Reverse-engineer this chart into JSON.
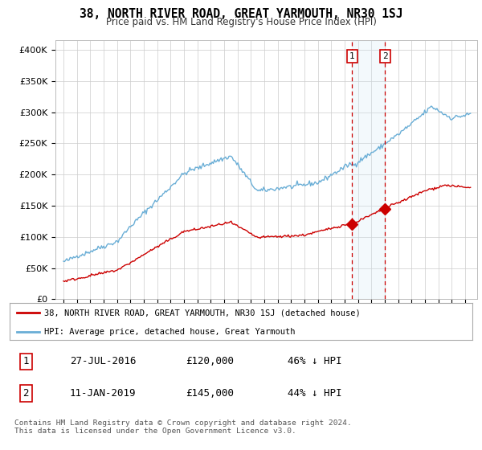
{
  "title": "38, NORTH RIVER ROAD, GREAT YARMOUTH, NR30 1SJ",
  "subtitle": "Price paid vs. HM Land Registry's House Price Index (HPI)",
  "ylabel_ticks": [
    "£0",
    "£50K",
    "£100K",
    "£150K",
    "£200K",
    "£250K",
    "£300K",
    "£350K",
    "£400K"
  ],
  "ytick_values": [
    0,
    50000,
    100000,
    150000,
    200000,
    250000,
    300000,
    350000,
    400000
  ],
  "ylim": [
    0,
    415000
  ],
  "hpi_color": "#6aaed6",
  "price_color": "#cc0000",
  "vline_color": "#cc0000",
  "marker1_date": 2016.57,
  "marker2_date": 2019.03,
  "marker1_price": 120000,
  "marker2_price": 145000,
  "annotation1": "1",
  "annotation2": "2",
  "legend_label1": "38, NORTH RIVER ROAD, GREAT YARMOUTH, NR30 1SJ (detached house)",
  "legend_label2": "HPI: Average price, detached house, Great Yarmouth",
  "table_row1": [
    "1",
    "27-JUL-2016",
    "£120,000",
    "46% ↓ HPI"
  ],
  "table_row2": [
    "2",
    "11-JAN-2019",
    "£145,000",
    "44% ↓ HPI"
  ],
  "footnote": "Contains HM Land Registry data © Crown copyright and database right 2024.\nThis data is licensed under the Open Government Licence v3.0.",
  "background_color": "#ffffff",
  "grid_color": "#cccccc",
  "span_color": "#d0e8f5"
}
